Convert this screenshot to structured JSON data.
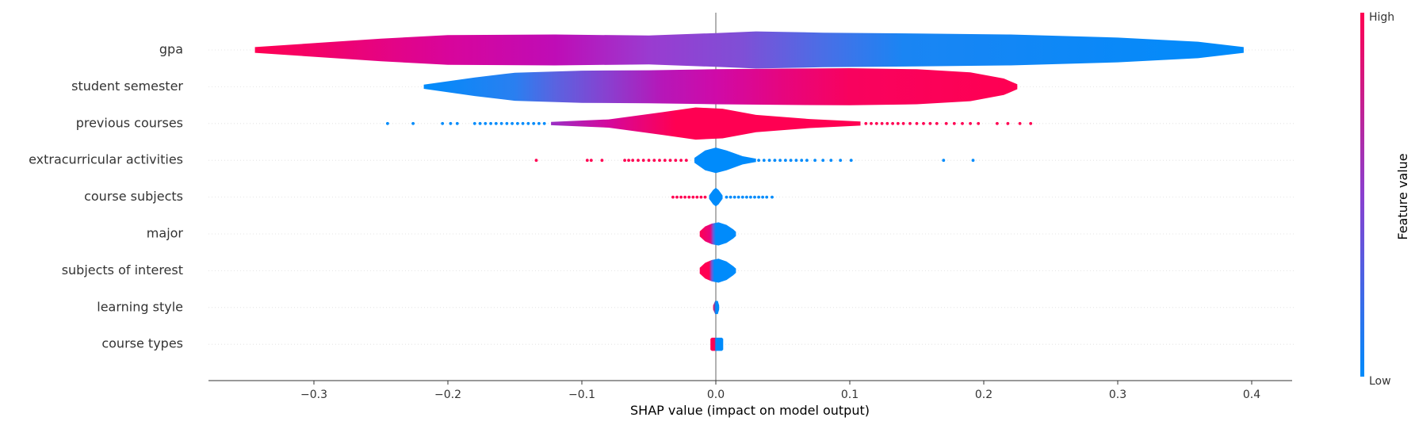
{
  "chart_data": {
    "type": "violin",
    "xlabel": "SHAP value (impact on model output)",
    "xlim": [
      -0.38,
      0.43
    ],
    "xticks": [
      -0.3,
      -0.2,
      -0.1,
      0.0,
      0.1,
      0.2,
      0.3,
      0.4
    ],
    "xtick_labels": [
      "−0.3",
      "−0.2",
      "−0.1",
      "0.0",
      "0.1",
      "0.2",
      "0.3",
      "0.4"
    ],
    "features": [
      {
        "name": "gpa",
        "profile": [
          [
            -0.344,
            0.14
          ],
          [
            -0.25,
            0.55
          ],
          [
            -0.2,
            0.72
          ],
          [
            -0.12,
            0.75
          ],
          [
            -0.05,
            0.7
          ],
          [
            0.0,
            0.82
          ],
          [
            0.03,
            0.9
          ],
          [
            0.08,
            0.84
          ],
          [
            0.15,
            0.8
          ],
          [
            0.22,
            0.75
          ],
          [
            0.3,
            0.6
          ],
          [
            0.36,
            0.4
          ],
          [
            0.394,
            0.14
          ]
        ],
        "colors": [
          [
            -0.344,
            "#ff0052"
          ],
          [
            -0.2,
            "#d8059b"
          ],
          [
            -0.12,
            "#bf0cb6"
          ],
          [
            -0.05,
            "#9a3bd0"
          ],
          [
            0.02,
            "#7f4fd6"
          ],
          [
            0.08,
            "#4a6ee6"
          ],
          [
            0.14,
            "#1a85f3"
          ],
          [
            0.394,
            "#008bfb"
          ]
        ],
        "dots": []
      },
      {
        "name": "student semester",
        "profile": [
          [
            -0.218,
            0.1
          ],
          [
            -0.18,
            0.45
          ],
          [
            -0.15,
            0.68
          ],
          [
            -0.1,
            0.78
          ],
          [
            -0.05,
            0.8
          ],
          [
            0.0,
            0.85
          ],
          [
            0.05,
            0.88
          ],
          [
            0.1,
            0.9
          ],
          [
            0.15,
            0.85
          ],
          [
            0.19,
            0.7
          ],
          [
            0.215,
            0.4
          ],
          [
            0.225,
            0.12
          ]
        ],
        "colors": [
          [
            -0.218,
            "#008bfb"
          ],
          [
            -0.15,
            "#2a7ff0"
          ],
          [
            -0.12,
            "#5a63e0"
          ],
          [
            -0.08,
            "#8a3fcf"
          ],
          [
            -0.04,
            "#b617b8"
          ],
          [
            0.0,
            "#cf0aa8"
          ],
          [
            0.05,
            "#e6057e"
          ],
          [
            0.1,
            "#f8025e"
          ],
          [
            0.225,
            "#ff0052"
          ]
        ],
        "dots": []
      },
      {
        "name": "previous courses",
        "profile": [
          [
            -0.123,
            0.08
          ],
          [
            -0.08,
            0.2
          ],
          [
            -0.04,
            0.55
          ],
          [
            -0.015,
            0.78
          ],
          [
            0.005,
            0.72
          ],
          [
            0.03,
            0.42
          ],
          [
            0.07,
            0.22
          ],
          [
            0.108,
            0.1
          ]
        ],
        "colors": [
          [
            -0.123,
            "#9a2fc4"
          ],
          [
            -0.08,
            "#d4089c"
          ],
          [
            -0.03,
            "#ff0052"
          ],
          [
            0.108,
            "#ff0052"
          ]
        ],
        "dots": [
          [
            -0.245,
            "#008bfb"
          ],
          [
            -0.226,
            "#008bfb"
          ],
          [
            -0.204,
            "#008bfb"
          ],
          [
            -0.198,
            "#008bfb"
          ],
          [
            -0.193,
            "#008bfb"
          ],
          [
            -0.18,
            "#008bfb"
          ],
          [
            -0.176,
            "#008bfb"
          ],
          [
            -0.172,
            "#008bfb"
          ],
          [
            -0.168,
            "#008bfb"
          ],
          [
            -0.164,
            "#008bfb"
          ],
          [
            -0.16,
            "#008bfb"
          ],
          [
            -0.156,
            "#008bfb"
          ],
          [
            -0.152,
            "#008bfb"
          ],
          [
            -0.148,
            "#008bfb"
          ],
          [
            -0.144,
            "#008bfb"
          ],
          [
            -0.14,
            "#008bfb"
          ],
          [
            -0.136,
            "#008bfb"
          ],
          [
            -0.132,
            "#008bfb"
          ],
          [
            -0.128,
            "#008bfb"
          ],
          [
            0.112,
            "#ff0052"
          ],
          [
            0.116,
            "#ff0052"
          ],
          [
            0.12,
            "#ff0052"
          ],
          [
            0.124,
            "#ff0052"
          ],
          [
            0.128,
            "#ff0052"
          ],
          [
            0.132,
            "#ff0052"
          ],
          [
            0.136,
            "#ff0052"
          ],
          [
            0.14,
            "#ff0052"
          ],
          [
            0.145,
            "#ff0052"
          ],
          [
            0.15,
            "#ff0052"
          ],
          [
            0.155,
            "#ff0052"
          ],
          [
            0.16,
            "#ff0052"
          ],
          [
            0.165,
            "#ff0052"
          ],
          [
            0.172,
            "#ff0052"
          ],
          [
            0.178,
            "#ff0052"
          ],
          [
            0.184,
            "#ff0052"
          ],
          [
            0.19,
            "#ff0052"
          ],
          [
            0.196,
            "#ff0052"
          ],
          [
            0.21,
            "#ff0052"
          ],
          [
            0.218,
            "#ff0052"
          ],
          [
            0.227,
            "#ff0052"
          ],
          [
            0.235,
            "#ff0052"
          ]
        ]
      },
      {
        "name": "extracurricular activities",
        "profile": [
          [
            -0.016,
            0.12
          ],
          [
            -0.008,
            0.48
          ],
          [
            0.0,
            0.62
          ],
          [
            0.008,
            0.48
          ],
          [
            0.02,
            0.2
          ],
          [
            0.03,
            0.08
          ]
        ],
        "colors": [
          [
            -0.016,
            "#008bfb"
          ],
          [
            0.03,
            "#008bfb"
          ]
        ],
        "dots": [
          [
            -0.134,
            "#ff0052"
          ],
          [
            -0.096,
            "#ff0052"
          ],
          [
            -0.093,
            "#ff0052"
          ],
          [
            -0.085,
            "#ff0052"
          ],
          [
            -0.068,
            "#ff0052"
          ],
          [
            -0.065,
            "#ff0052"
          ],
          [
            -0.062,
            "#ff0052"
          ],
          [
            -0.058,
            "#ff0052"
          ],
          [
            -0.054,
            "#ff0052"
          ],
          [
            -0.05,
            "#ff0052"
          ],
          [
            -0.046,
            "#ff0052"
          ],
          [
            -0.042,
            "#ff0052"
          ],
          [
            -0.038,
            "#ff0052"
          ],
          [
            -0.034,
            "#ff0052"
          ],
          [
            -0.03,
            "#ff0052"
          ],
          [
            -0.026,
            "#ff0052"
          ],
          [
            -0.022,
            "#ff0052"
          ],
          [
            0.032,
            "#008bfb"
          ],
          [
            0.036,
            "#008bfb"
          ],
          [
            0.04,
            "#008bfb"
          ],
          [
            0.044,
            "#008bfb"
          ],
          [
            0.048,
            "#008bfb"
          ],
          [
            0.052,
            "#008bfb"
          ],
          [
            0.056,
            "#008bfb"
          ],
          [
            0.06,
            "#008bfb"
          ],
          [
            0.064,
            "#008bfb"
          ],
          [
            0.068,
            "#008bfb"
          ],
          [
            0.074,
            "#008bfb"
          ],
          [
            0.08,
            "#008bfb"
          ],
          [
            0.086,
            "#008bfb"
          ],
          [
            0.093,
            "#008bfb"
          ],
          [
            0.101,
            "#008bfb"
          ],
          [
            0.17,
            "#008bfb"
          ],
          [
            0.192,
            "#008bfb"
          ]
        ]
      },
      {
        "name": "course subjects",
        "profile": [
          [
            -0.005,
            0.08
          ],
          [
            -0.002,
            0.35
          ],
          [
            0.0,
            0.45
          ],
          [
            0.002,
            0.35
          ],
          [
            0.005,
            0.08
          ]
        ],
        "colors": [
          [
            -0.005,
            "#008bfb"
          ],
          [
            0.005,
            "#008bfb"
          ]
        ],
        "dots": [
          [
            -0.032,
            "#ff0052"
          ],
          [
            -0.029,
            "#ff0052"
          ],
          [
            -0.026,
            "#ff0052"
          ],
          [
            -0.023,
            "#ff0052"
          ],
          [
            -0.02,
            "#ff0052"
          ],
          [
            -0.017,
            "#ff0052"
          ],
          [
            -0.014,
            "#ff0052"
          ],
          [
            -0.011,
            "#ff0052"
          ],
          [
            -0.008,
            "#ff0052"
          ],
          [
            0.008,
            "#008bfb"
          ],
          [
            0.011,
            "#008bfb"
          ],
          [
            0.014,
            "#008bfb"
          ],
          [
            0.017,
            "#008bfb"
          ],
          [
            0.02,
            "#008bfb"
          ],
          [
            0.023,
            "#008bfb"
          ],
          [
            0.026,
            "#008bfb"
          ],
          [
            0.029,
            "#008bfb"
          ],
          [
            0.032,
            "#008bfb"
          ],
          [
            0.035,
            "#008bfb"
          ],
          [
            0.038,
            "#008bfb"
          ],
          [
            0.042,
            "#008bfb"
          ]
        ]
      },
      {
        "name": "major",
        "profile": [
          [
            -0.012,
            0.12
          ],
          [
            -0.008,
            0.36
          ],
          [
            -0.003,
            0.5
          ],
          [
            0.002,
            0.56
          ],
          [
            0.008,
            0.44
          ],
          [
            0.013,
            0.22
          ],
          [
            0.015,
            0.1
          ]
        ],
        "colors": [
          [
            -0.012,
            "#ff0052"
          ],
          [
            -0.004,
            "#e6057e"
          ],
          [
            -0.002,
            "#6f5ad8"
          ],
          [
            0.0,
            "#008bfb"
          ],
          [
            0.015,
            "#008bfb"
          ]
        ],
        "dots": []
      },
      {
        "name": "subjects of interest",
        "profile": [
          [
            -0.012,
            0.14
          ],
          [
            -0.008,
            0.38
          ],
          [
            -0.003,
            0.52
          ],
          [
            0.002,
            0.58
          ],
          [
            0.008,
            0.45
          ],
          [
            0.013,
            0.22
          ],
          [
            0.015,
            0.1
          ]
        ],
        "colors": [
          [
            -0.012,
            "#ff0052"
          ],
          [
            -0.005,
            "#ff0052"
          ],
          [
            -0.003,
            "#6f5ad8"
          ],
          [
            -0.001,
            "#008bfb"
          ],
          [
            0.015,
            "#008bfb"
          ]
        ],
        "dots": []
      },
      {
        "name": "learning style",
        "profile": [
          [
            -0.002,
            0.1
          ],
          [
            -0.0005,
            0.32
          ],
          [
            0.0015,
            0.32
          ],
          [
            0.0025,
            0.1
          ]
        ],
        "colors": [
          [
            -0.002,
            "#ff0052"
          ],
          [
            0.0,
            "#008bfb"
          ],
          [
            0.0025,
            "#008bfb"
          ]
        ],
        "dots": []
      },
      {
        "name": "course types",
        "profile": [
          [
            -0.004,
            0.26
          ],
          [
            -0.003,
            0.32
          ],
          [
            0.0045,
            0.32
          ],
          [
            0.0055,
            0.26
          ]
        ],
        "colors": [
          [
            -0.004,
            "#ff0052"
          ],
          [
            -0.001,
            "#ff0052"
          ],
          [
            0.0,
            "#008bfb"
          ],
          [
            0.0055,
            "#008bfb"
          ]
        ],
        "dots": []
      }
    ],
    "colorbar": {
      "label": "Feature value",
      "high_label": "High",
      "low_label": "Low",
      "low_color": "#008bfb",
      "high_color": "#ff0052"
    }
  }
}
